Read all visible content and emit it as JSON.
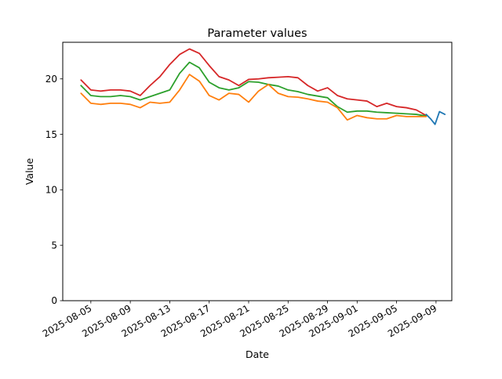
{
  "chart_data": {
    "type": "line",
    "title": "Parameter values",
    "xlabel": "Date",
    "ylabel": "Value",
    "grid": false,
    "legend": null,
    "ylim": [
      0,
      23.3
    ],
    "y_ticks": [
      0,
      5,
      10,
      15,
      20
    ],
    "xlim_days": [
      -1.85,
      37.6
    ],
    "x_start_date": "2025-08-04",
    "x_ticks": [
      {
        "label": "2025-08-05",
        "day": 1
      },
      {
        "label": "2025-08-09",
        "day": 5
      },
      {
        "label": "2025-08-13",
        "day": 9
      },
      {
        "label": "2025-08-17",
        "day": 13
      },
      {
        "label": "2025-08-21",
        "day": 17
      },
      {
        "label": "2025-08-25",
        "day": 21
      },
      {
        "label": "2025-08-29",
        "day": 25
      },
      {
        "label": "2025-09-01",
        "day": 28
      },
      {
        "label": "2025-09-05",
        "day": 32
      },
      {
        "label": "2025-09-09",
        "day": 36
      }
    ],
    "series": [
      {
        "name": "red-series",
        "color": "#d62728",
        "start_date": "2025-08-04",
        "x_start": 0,
        "x_step": 1,
        "values": [
          19.9,
          19.0,
          18.9,
          19.0,
          19.0,
          18.9,
          18.5,
          19.4,
          20.2,
          21.3,
          22.2,
          22.7,
          22.3,
          21.2,
          20.2,
          19.9,
          19.4,
          19.95,
          20.0,
          20.1,
          20.15,
          20.2,
          20.1,
          19.4,
          18.9,
          19.2,
          18.5,
          18.2,
          18.1,
          18.0,
          17.5,
          17.8,
          17.5,
          17.4,
          17.2,
          16.7
        ]
      },
      {
        "name": "green-series",
        "color": "#2ca02c",
        "start_date": "2025-08-04",
        "x_start": 0,
        "x_step": 1,
        "values": [
          19.4,
          18.5,
          18.4,
          18.4,
          18.5,
          18.4,
          18.1,
          18.4,
          18.7,
          19.0,
          20.5,
          21.5,
          21.0,
          19.7,
          19.2,
          19.0,
          19.2,
          19.75,
          19.7,
          19.5,
          19.35,
          19.0,
          18.85,
          18.6,
          18.45,
          18.3,
          17.5,
          17.0,
          17.1,
          17.1,
          17.0,
          16.95,
          16.9,
          16.85,
          16.8,
          16.65
        ]
      },
      {
        "name": "orange-series",
        "color": "#ff7f0e",
        "start_date": "2025-08-04",
        "x_start": 0,
        "x_step": 1,
        "values": [
          18.7,
          17.8,
          17.7,
          17.8,
          17.8,
          17.7,
          17.4,
          17.9,
          17.8,
          17.9,
          19.0,
          20.4,
          19.8,
          18.5,
          18.1,
          18.7,
          18.6,
          17.9,
          18.9,
          19.5,
          18.7,
          18.4,
          18.35,
          18.2,
          18.0,
          17.9,
          17.4,
          16.3,
          16.7,
          16.5,
          16.4,
          16.4,
          16.7,
          16.6,
          16.6,
          16.6
        ]
      },
      {
        "name": "blue-series",
        "color": "#1f77b4",
        "x": [
          35.0,
          35.45,
          35.9,
          36.35,
          36.9
        ],
        "values": [
          16.8,
          16.4,
          15.9,
          17.05,
          16.8
        ]
      }
    ]
  }
}
